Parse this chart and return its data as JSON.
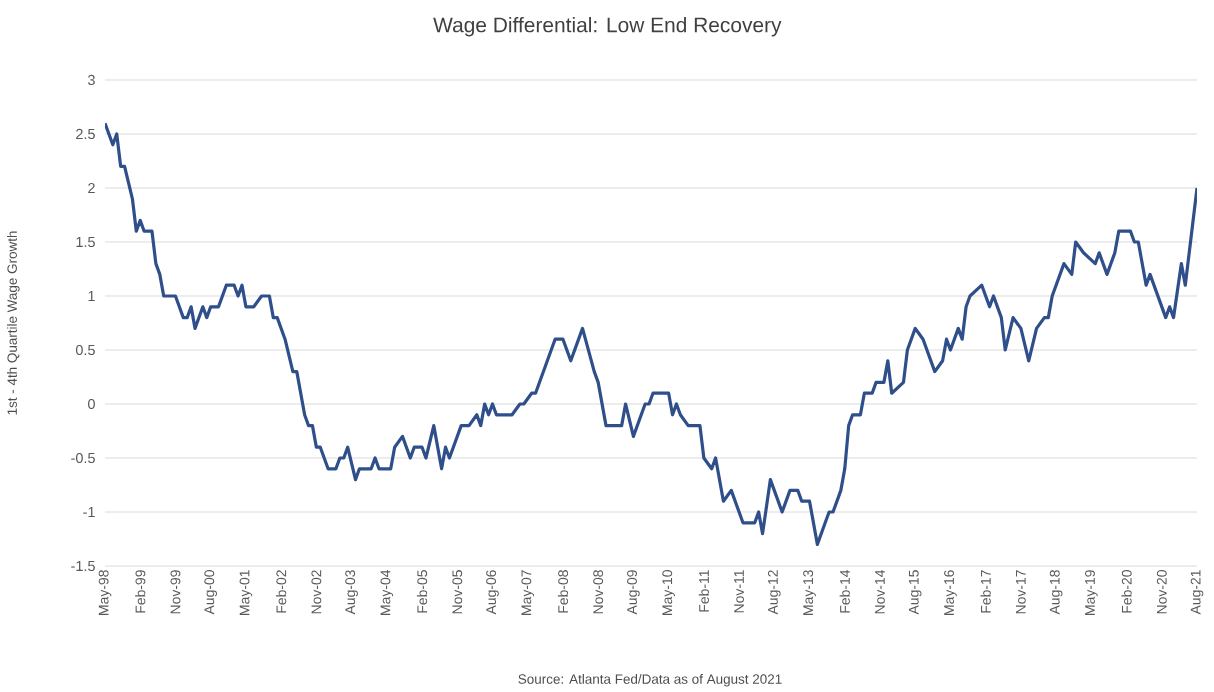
{
  "chart_data": {
    "type": "line",
    "title": "Wage Differential: Low End Recovery",
    "ylabel": "1st - 4th Quartile Wage Growth",
    "annotations": [
      "Source: Atlanta Fed/Data as of August 2021"
    ],
    "x": [
      "1998-05",
      "1998-07",
      "1998-08",
      "1998-09",
      "1998-10",
      "1998-12",
      "1999-01",
      "1999-02",
      "1999-03",
      "1999-05",
      "1999-06",
      "1999-07",
      "1999-08",
      "1999-11",
      "1999-12",
      "2000-01",
      "2000-02",
      "2000-03",
      "2000-04",
      "2000-06",
      "2000-07",
      "2000-08",
      "2000-10",
      "2000-12",
      "2001-02",
      "2001-03",
      "2001-04",
      "2001-05",
      "2001-07",
      "2001-09",
      "2001-11",
      "2001-12",
      "2002-01",
      "2002-03",
      "2002-05",
      "2002-06",
      "2002-08",
      "2002-09",
      "2002-10",
      "2002-11",
      "2002-12",
      "2003-02",
      "2003-04",
      "2003-05",
      "2003-06",
      "2003-07",
      "2003-09",
      "2003-10",
      "2004-01",
      "2004-02",
      "2004-03",
      "2004-06",
      "2004-07",
      "2004-09",
      "2004-11",
      "2004-12",
      "2005-02",
      "2005-03",
      "2005-05",
      "2005-07",
      "2005-08",
      "2005-09",
      "2005-10",
      "2005-12",
      "2006-02",
      "2006-04",
      "2006-05",
      "2006-06",
      "2006-07",
      "2006-08",
      "2006-09",
      "2007-01",
      "2007-03",
      "2007-04",
      "2007-06",
      "2007-07",
      "2007-08",
      "2007-09",
      "2007-12",
      "2008-02",
      "2008-04",
      "2008-07",
      "2008-10",
      "2008-11",
      "2009-01",
      "2009-05",
      "2009-06",
      "2009-08",
      "2009-11",
      "2009-12",
      "2010-01",
      "2010-05",
      "2010-06",
      "2010-07",
      "2010-08",
      "2010-10",
      "2011-01",
      "2011-02",
      "2011-04",
      "2011-05",
      "2011-07",
      "2011-09",
      "2011-12",
      "2012-03",
      "2012-04",
      "2012-05",
      "2012-07",
      "2012-10",
      "2012-12",
      "2013-02",
      "2013-03",
      "2013-05",
      "2013-07",
      "2013-09",
      "2013-10",
      "2013-11",
      "2014-01",
      "2014-02",
      "2014-03",
      "2014-04",
      "2014-06",
      "2014-07",
      "2014-09",
      "2014-10",
      "2014-12",
      "2015-01",
      "2015-02",
      "2015-05",
      "2015-06",
      "2015-08",
      "2015-10",
      "2016-01",
      "2016-03",
      "2016-04",
      "2016-05",
      "2016-07",
      "2016-08",
      "2016-09",
      "2016-10",
      "2017-01",
      "2017-03",
      "2017-04",
      "2017-06",
      "2017-07",
      "2017-09",
      "2017-11",
      "2018-01",
      "2018-03",
      "2018-05",
      "2018-06",
      "2018-07",
      "2018-10",
      "2018-12",
      "2019-01",
      "2019-03",
      "2019-06",
      "2019-07",
      "2019-09",
      "2019-11",
      "2019-12",
      "2020-03",
      "2020-04",
      "2020-05",
      "2020-07",
      "2020-08",
      "2020-12",
      "2021-01",
      "2021-02",
      "2021-04",
      "2021-05",
      "2021-08"
    ],
    "series": [
      {
        "color": "#2f4f8a",
        "line_style": "solid",
        "values": [
          2.6,
          2.4,
          2.5,
          2.2,
          2.2,
          1.9,
          1.6,
          1.7,
          1.6,
          1.6,
          1.3,
          1.2,
          1.0,
          1.0,
          0.9,
          0.8,
          0.8,
          0.9,
          0.7,
          0.9,
          0.8,
          0.9,
          0.9,
          1.1,
          1.1,
          1.0,
          1.1,
          0.9,
          0.9,
          1.0,
          1.0,
          0.8,
          0.8,
          0.6,
          0.3,
          0.3,
          -0.1,
          -0.2,
          -0.2,
          -0.4,
          -0.4,
          -0.6,
          -0.6,
          -0.5,
          -0.5,
          -0.4,
          -0.7,
          -0.6,
          -0.6,
          -0.5,
          -0.6,
          -0.6,
          -0.4,
          -0.3,
          -0.5,
          -0.4,
          -0.4,
          -0.5,
          -0.2,
          -0.6,
          -0.4,
          -0.5,
          -0.4,
          -0.2,
          -0.2,
          -0.1,
          -0.2,
          0.0,
          -0.1,
          0.0,
          -0.1,
          -0.1,
          0.0,
          0.0,
          0.1,
          0.1,
          0.2,
          0.3,
          0.6,
          0.6,
          0.4,
          0.7,
          0.3,
          0.2,
          -0.2,
          -0.2,
          0.0,
          -0.3,
          0.0,
          0.0,
          0.1,
          0.1,
          -0.1,
          0.0,
          -0.1,
          -0.2,
          -0.2,
          -0.5,
          -0.6,
          -0.5,
          -0.9,
          -0.8,
          -1.1,
          -1.1,
          -1.0,
          -1.2,
          -0.7,
          -1.0,
          -0.8,
          -0.8,
          -0.9,
          -0.9,
          -1.3,
          -1.1,
          -1.0,
          -1.0,
          -0.8,
          -0.6,
          -0.2,
          -0.1,
          -0.1,
          0.1,
          0.1,
          0.2,
          0.2,
          0.4,
          0.1,
          0.2,
          0.5,
          0.7,
          0.6,
          0.3,
          0.4,
          0.6,
          0.5,
          0.7,
          0.6,
          0.9,
          1.0,
          1.1,
          0.9,
          1.0,
          0.8,
          0.5,
          0.8,
          0.7,
          0.4,
          0.7,
          0.8,
          0.8,
          1.0,
          1.3,
          1.2,
          1.5,
          1.4,
          1.3,
          1.4,
          1.2,
          1.4,
          1.6,
          1.6,
          1.5,
          1.5,
          1.1,
          1.2,
          0.8,
          0.9,
          0.8,
          1.3,
          1.1,
          2.0
        ]
      }
    ],
    "xlim": [
      "1998-05",
      "2021-08"
    ],
    "xticks": [
      {
        "value": "1998-05",
        "label": "May-98"
      },
      {
        "value": "1999-02",
        "label": "Feb-99"
      },
      {
        "value": "1999-11",
        "label": "Nov-99"
      },
      {
        "value": "2000-08",
        "label": "Aug-00"
      },
      {
        "value": "2001-05",
        "label": "May-01"
      },
      {
        "value": "2002-02",
        "label": "Feb-02"
      },
      {
        "value": "2002-11",
        "label": "Nov-02"
      },
      {
        "value": "2003-08",
        "label": "Aug-03"
      },
      {
        "value": "2004-05",
        "label": "May-04"
      },
      {
        "value": "2005-02",
        "label": "Feb-05"
      },
      {
        "value": "2005-11",
        "label": "Nov-05"
      },
      {
        "value": "2006-08",
        "label": "Aug-06"
      },
      {
        "value": "2007-05",
        "label": "May-07"
      },
      {
        "value": "2008-02",
        "label": "Feb-08"
      },
      {
        "value": "2008-11",
        "label": "Nov-08"
      },
      {
        "value": "2009-08",
        "label": "Aug-09"
      },
      {
        "value": "2010-05",
        "label": "May-10"
      },
      {
        "value": "2011-02",
        "label": "Feb-11"
      },
      {
        "value": "2011-11",
        "label": "Nov-11"
      },
      {
        "value": "2012-08",
        "label": "Aug-12"
      },
      {
        "value": "2013-05",
        "label": "May-13"
      },
      {
        "value": "2014-02",
        "label": "Feb-14"
      },
      {
        "value": "2014-11",
        "label": "Nov-14"
      },
      {
        "value": "2015-08",
        "label": "Aug-15"
      },
      {
        "value": "2016-05",
        "label": "May-16"
      },
      {
        "value": "2017-02",
        "label": "Feb-17"
      },
      {
        "value": "2017-11",
        "label": "Nov-17"
      },
      {
        "value": "2018-08",
        "label": "Aug-18"
      },
      {
        "value": "2019-05",
        "label": "May-19"
      },
      {
        "value": "2020-02",
        "label": "Feb-20"
      },
      {
        "value": "2020-11",
        "label": "Nov-20"
      },
      {
        "value": "2021-08",
        "label": "Aug-21"
      }
    ],
    "ylim": [
      -1.5,
      3
    ],
    "yticks": [
      -1.5,
      -1,
      -0.5,
      0,
      0.5,
      1,
      1.5,
      2,
      2.5,
      3
    ],
    "grid": "y"
  }
}
